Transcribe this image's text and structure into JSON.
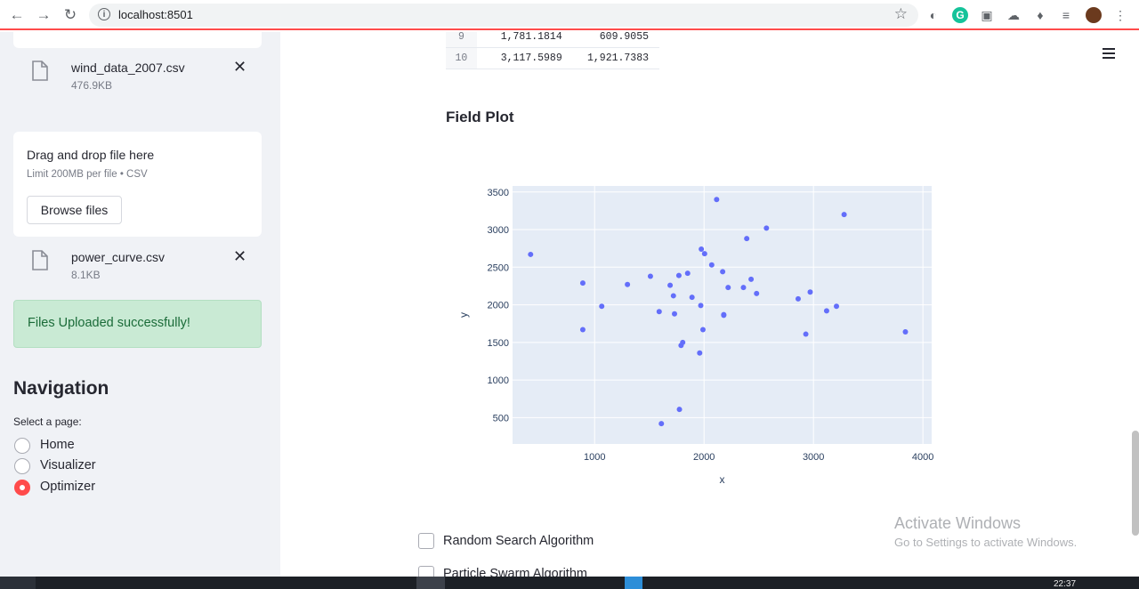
{
  "browser": {
    "url": "localhost:8501"
  },
  "sidebar": {
    "files": [
      {
        "name": "wind_data_2007.csv",
        "size": "476.9KB"
      },
      {
        "name": "power_curve.csv",
        "size": "8.1KB"
      }
    ],
    "dropzone": {
      "title": "Drag and drop file here",
      "limit": "Limit 200MB per file • CSV",
      "button": "Browse files"
    },
    "success_message": "Files Uploaded successfully!",
    "navigation": {
      "title": "Navigation",
      "label": "Select a page:",
      "options": [
        "Home",
        "Visualizer",
        "Optimizer"
      ],
      "selected": "Optimizer"
    }
  },
  "main": {
    "table_rows": [
      {
        "index": "9",
        "c1": "1,781.1814",
        "c2": "609.9055"
      },
      {
        "index": "10",
        "c1": "3,117.5989",
        "c2": "1,921.7383"
      }
    ],
    "field_plot_title": "Field Plot",
    "checkboxes": [
      "Random Search Algorithm",
      "Particle Swarm Algorithm"
    ]
  },
  "chart_data": {
    "type": "scatter",
    "xlabel": "x",
    "ylabel": "y",
    "xlim": [
      250,
      4080
    ],
    "ylim": [
      150,
      3580
    ],
    "xticks": [
      1000,
      2000,
      3000,
      4000
    ],
    "yticks": [
      500,
      1000,
      1500,
      2000,
      2500,
      3000,
      3500
    ],
    "point_color": "#636efa",
    "grid": true,
    "x": [
      415,
      892,
      892,
      1065,
      1300,
      1510,
      1590,
      1610,
      1690,
      1720,
      1730,
      1770,
      1775,
      1790,
      1805,
      1850,
      1890,
      1960,
      1970,
      1975,
      1990,
      2005,
      2070,
      2115,
      2170,
      2180,
      2180,
      2220,
      2360,
      2390,
      2430,
      2480,
      2570,
      2860,
      2930,
      2970,
      3120,
      3210,
      3280,
      3840
    ],
    "y": [
      2670,
      2290,
      1670,
      1980,
      2270,
      2380,
      1910,
      420,
      2260,
      2120,
      1880,
      2390,
      610,
      1460,
      1500,
      2420,
      2100,
      1360,
      1990,
      2740,
      1670,
      2680,
      2530,
      3400,
      2440,
      1870,
      1860,
      2230,
      2230,
      2880,
      2340,
      2150,
      3020,
      2080,
      1610,
      2170,
      1920,
      1980,
      3200,
      1640
    ]
  },
  "overlay": {
    "activate_title": "Activate Windows",
    "activate_sub": "Go to Settings to activate Windows."
  },
  "taskbar": {
    "time": "22:37"
  }
}
